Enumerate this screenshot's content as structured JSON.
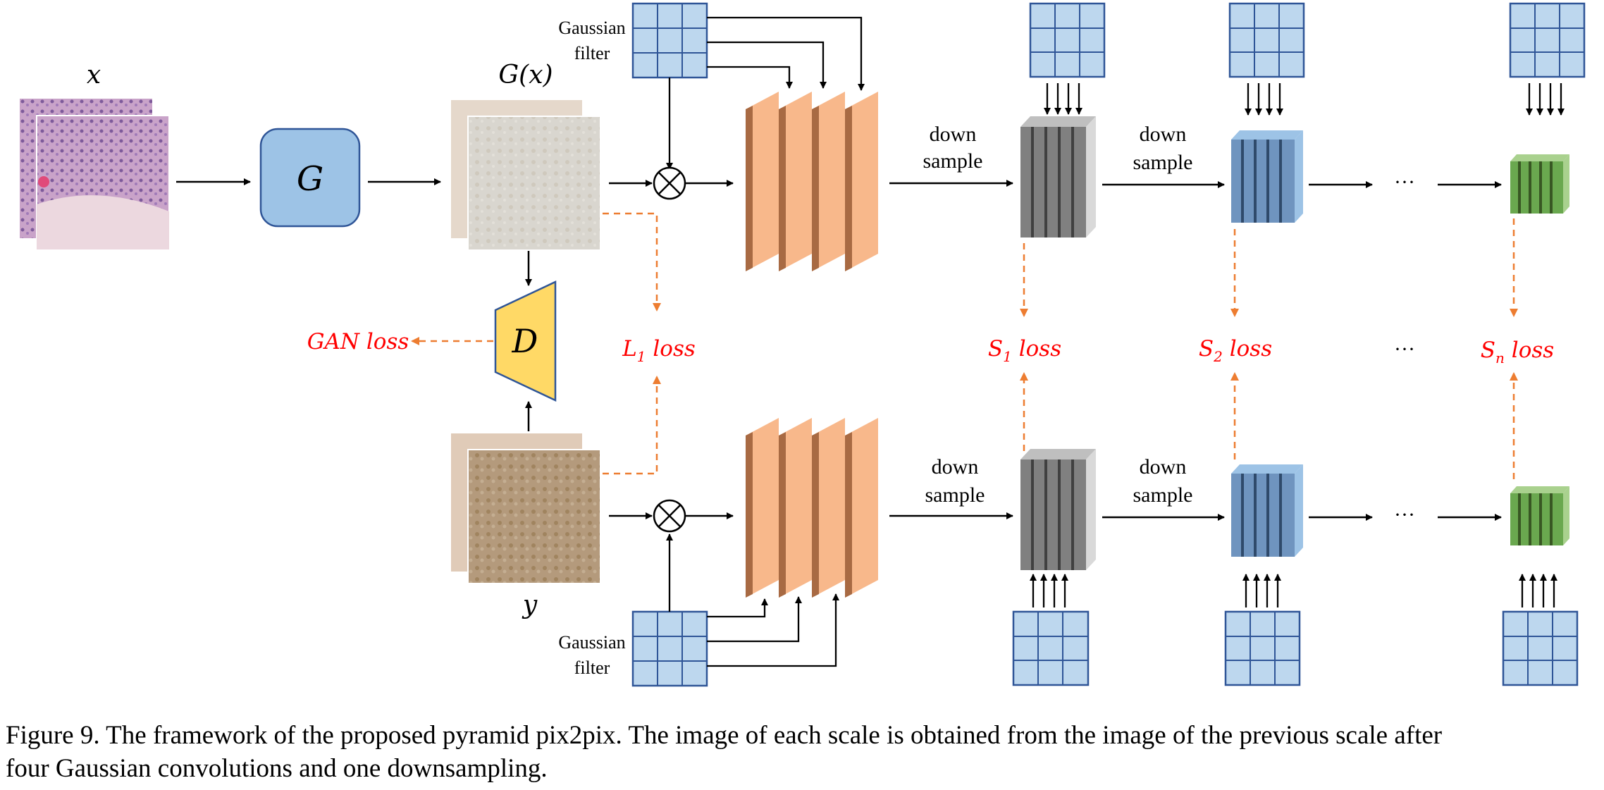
{
  "labels": {
    "x": "x",
    "G": "G",
    "Gx": "G(x)",
    "y": "y",
    "D": "D",
    "gaussian_top": [
      "Gaussian",
      "filter"
    ],
    "gaussian_bottom": [
      "Gaussian",
      "filter"
    ],
    "downsample": [
      "down",
      "sample"
    ],
    "ellipsis": "···"
  },
  "losses": {
    "gan": "GAN loss",
    "l1_main": "L",
    "l1_sub": "1",
    "l1_rest": " loss",
    "s1_main": "S",
    "s1_sub": "1",
    "s1_rest": " loss",
    "s2_main": "S",
    "s2_sub": "2",
    "s2_rest": " loss",
    "sn_main": "S",
    "sn_sub": "n",
    "sn_rest": " loss"
  },
  "caption": {
    "line1": "Figure 9. The framework of the proposed pyramid pix2pix. The image of each scale is obtained from the image of the previous scale after",
    "line2": "four Gaussian convolutions and one downsampling."
  },
  "colors": {
    "generator_fill": "#9dc3e6",
    "discriminator_fill": "#ffd966",
    "conv_orange": "#f8b88b",
    "conv_orange_side": "#a86a43",
    "gray_block": "#808080",
    "blue_block": "#6f94bf",
    "green_block": "#6aa84f",
    "kernel_fill": "#bdd7ee",
    "kernel_stroke": "#2f5597",
    "loss_red": "#ff0000",
    "dashed_orange": "#ed7d31"
  }
}
